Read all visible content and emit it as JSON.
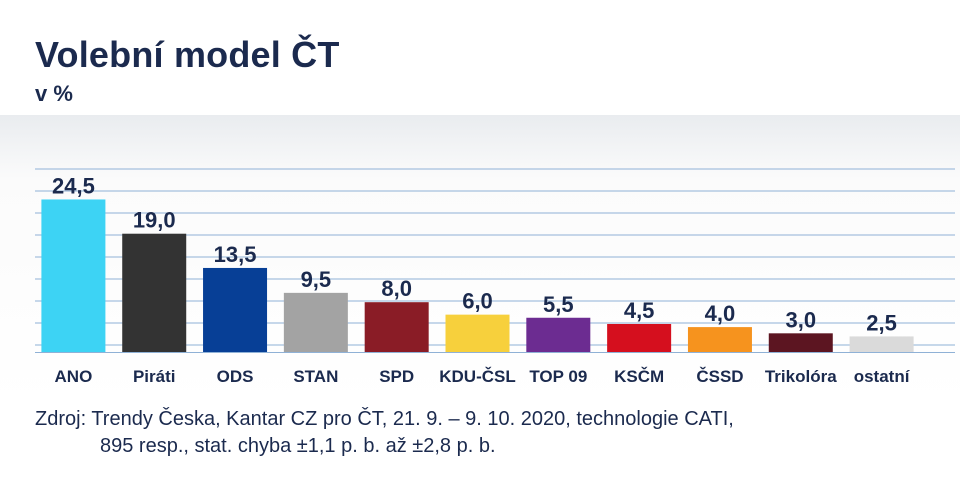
{
  "header": {
    "title": "Volební model ČT",
    "subtitle": "v %"
  },
  "chart_data": {
    "type": "bar",
    "title": "Volební model ČT",
    "subtitle": "v %",
    "xlabel": "",
    "ylabel": "",
    "ylim": [
      0,
      31
    ],
    "grid": true,
    "categories": [
      "ANO",
      "Piráti",
      "ODS",
      "STAN",
      "SPD",
      "KDU-ČSL",
      "TOP 09",
      "KSČM",
      "ČSSD",
      "Trikolóra",
      "ostatní"
    ],
    "values": [
      24.5,
      19.0,
      13.5,
      9.5,
      8.0,
      6.0,
      5.5,
      4.5,
      4.0,
      3.0,
      2.5
    ],
    "value_labels": [
      "24,5",
      "19,0",
      "13,5",
      "9,5",
      "8,0",
      "6,0",
      "5,5",
      "4,5",
      "4,0",
      "3,0",
      "2,5"
    ],
    "colors": [
      "#3dd3f4",
      "#333333",
      "#073f96",
      "#a3a3a3",
      "#8a1c26",
      "#f7d03c",
      "#6c2c91",
      "#d50f1e",
      "#f6931e",
      "#5c1521",
      "#dadada"
    ]
  },
  "footer": {
    "source_line1": "Zdroj: Trendy Česka, Kantar CZ pro ČT, 21. 9. – 9. 10. 2020, technologie CATI,",
    "source_line2": "895 resp., stat. chyba ±1,1 p. b. až ±2,8 p. b."
  }
}
